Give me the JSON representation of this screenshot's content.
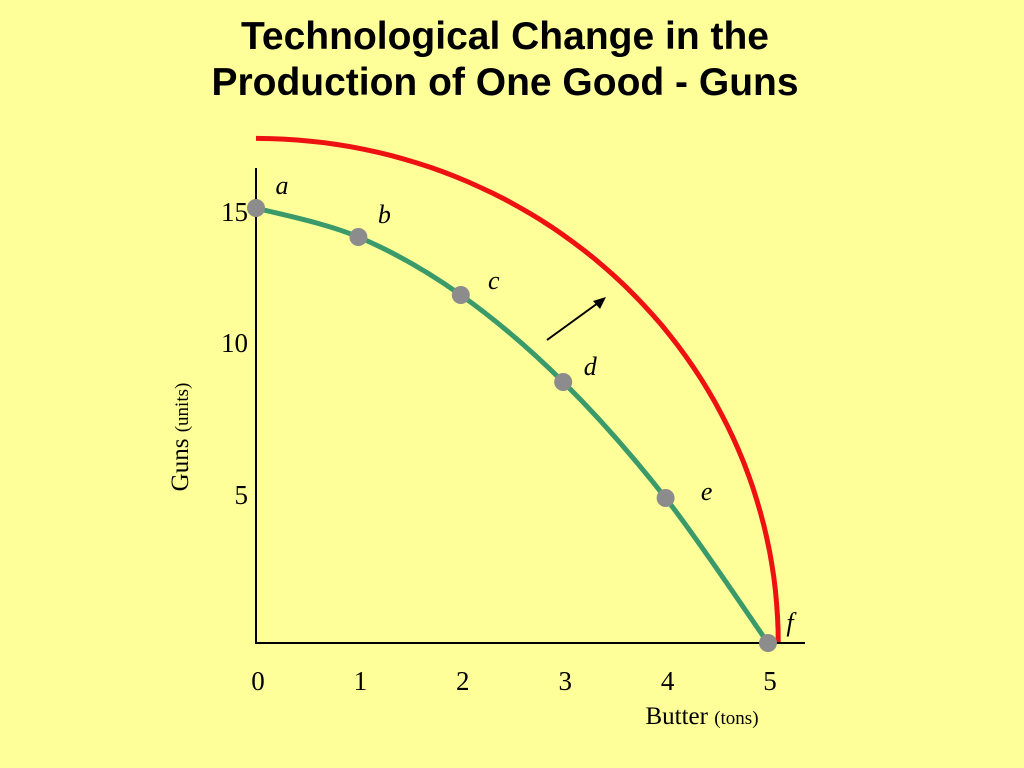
{
  "title_line1": "Technological Change in the",
  "title_line2": "Production of One Good - Guns",
  "chart_data": {
    "type": "line",
    "xlabel": "Butter",
    "xlabel_unit": "(tons)",
    "ylabel": "Guns",
    "ylabel_unit": "(units)",
    "xlim": [
      0,
      5
    ],
    "ylim": [
      0,
      15
    ],
    "x_ticks": [
      "0",
      "1",
      "2",
      "3",
      "4",
      "5"
    ],
    "y_ticks": [
      {
        "value": 5,
        "label": "5"
      },
      {
        "value": 10,
        "label": "10"
      },
      {
        "value": 15,
        "label": "15"
      }
    ],
    "original_ppf": {
      "color": "#3A9A6A",
      "points": [
        {
          "x": 0,
          "y": 15,
          "label": "a"
        },
        {
          "x": 1,
          "y": 14,
          "label": "b"
        },
        {
          "x": 2,
          "y": 12,
          "label": "c"
        },
        {
          "x": 3,
          "y": 9,
          "label": "d"
        },
        {
          "x": 4,
          "y": 5,
          "label": "e"
        },
        {
          "x": 5,
          "y": 0,
          "label": "f"
        }
      ]
    },
    "new_ppf": {
      "color": "#EE1111",
      "y_intercept": 17.4,
      "x_intercept": 5.1
    },
    "point_color": "#8C8C8C",
    "arrow": "outward shift",
    "grid": false
  }
}
